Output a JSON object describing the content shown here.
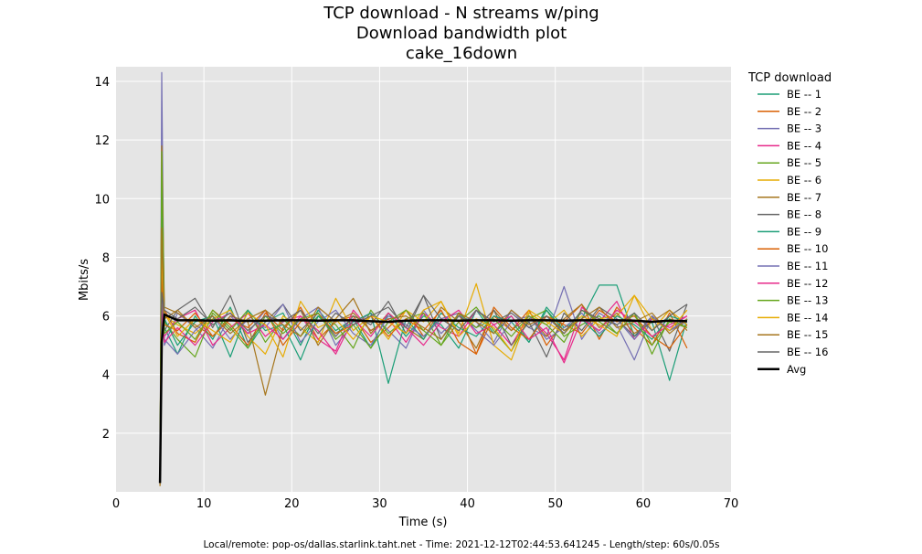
{
  "chart_data": {
    "type": "line",
    "title": [
      "TCP download - N streams w/ping",
      "Download bandwidth plot",
      "cake_16down"
    ],
    "xlabel": "Time (s)",
    "ylabel": "Mbits/s",
    "xlim": [
      0,
      70
    ],
    "ylim": [
      0,
      14.5
    ],
    "xticks": [
      0,
      10,
      20,
      30,
      40,
      50,
      60,
      70
    ],
    "yticks": [
      2,
      4,
      6,
      8,
      10,
      12,
      14
    ],
    "grid": true,
    "legend_title": "TCP download",
    "legend_placement": "outside-right",
    "background": "#e5e5e5",
    "x": [
      5.0,
      5.2,
      5.5,
      7,
      9,
      11,
      13,
      15,
      17,
      19,
      21,
      23,
      25,
      27,
      29,
      31,
      33,
      35,
      37,
      39,
      41,
      43,
      45,
      47,
      49,
      51,
      53,
      55,
      57,
      59,
      61,
      63,
      65
    ],
    "series": [
      {
        "name": "BE -- 1",
        "color": "#1b9e77",
        "values": [
          0.3,
          9.5,
          5.6,
          4.7,
          6.0,
          5.2,
          6.3,
          4.9,
          5.8,
          6.1,
          5.0,
          6.2,
          5.5,
          5.9,
          4.9,
          6.1,
          5.3,
          6.0,
          5.7,
          4.9,
          6.2,
          5.4,
          6.0,
          5.1,
          6.3,
          5.6,
          5.9,
          7.05,
          7.05,
          5.3,
          5.8,
          3.8,
          5.9
        ]
      },
      {
        "name": "BE -- 2",
        "color": "#d95f02",
        "values": [
          0.3,
          8.8,
          6.2,
          5.4,
          5.1,
          6.2,
          5.7,
          5.0,
          6.1,
          5.5,
          6.3,
          5.2,
          5.8,
          6.0,
          5.1,
          5.6,
          6.2,
          5.3,
          5.9,
          6.1,
          4.7,
          6.0,
          5.5,
          6.2,
          5.0,
          5.8,
          6.4,
          5.2,
          6.3,
          5.6,
          5.0,
          6.1,
          4.9
        ]
      },
      {
        "name": "BE -- 3",
        "color": "#7570b3",
        "values": [
          0.4,
          14.3,
          5.0,
          6.1,
          5.6,
          4.9,
          6.0,
          5.4,
          6.2,
          5.2,
          5.9,
          6.3,
          5.0,
          5.7,
          6.1,
          5.5,
          4.9,
          6.2,
          5.4,
          6.0,
          5.8,
          5.1,
          6.2,
          5.6,
          5.3,
          7.0,
          5.2,
          6.1,
          5.7,
          4.5,
          6.0,
          5.5,
          5.8
        ]
      },
      {
        "name": "BE -- 4",
        "color": "#e7298a",
        "values": [
          0.3,
          6.0,
          5.3,
          5.9,
          6.2,
          5.0,
          5.6,
          6.1,
          5.3,
          5.8,
          6.0,
          5.2,
          4.8,
          6.2,
          5.5,
          5.9,
          5.1,
          6.1,
          5.6,
          5.3,
          6.2,
          5.7,
          5.0,
          6.0,
          5.4,
          4.5,
          6.3,
          5.8,
          6.5,
          5.2,
          5.9,
          5.6,
          6.0
        ]
      },
      {
        "name": "BE -- 5",
        "color": "#66a61e",
        "values": [
          0.3,
          11.0,
          5.8,
          5.2,
          4.6,
          6.1,
          5.5,
          6.2,
          5.1,
          5.9,
          5.3,
          6.0,
          5.7,
          4.9,
          6.2,
          5.4,
          5.9,
          6.1,
          5.0,
          5.8,
          6.3,
          5.5,
          4.8,
          5.9,
          6.2,
          5.3,
          5.7,
          6.0,
          5.4,
          6.1,
          5.0,
          5.8,
          5.6
        ]
      },
      {
        "name": "BE -- 6",
        "color": "#e6ab02",
        "values": [
          0.6,
          11.7,
          6.0,
          5.7,
          5.4,
          5.9,
          6.2,
          5.3,
          4.7,
          6.0,
          5.6,
          5.1,
          6.6,
          5.5,
          6.0,
          5.2,
          6.2,
          5.8,
          6.5,
          5.4,
          7.1,
          5.0,
          4.5,
          6.1,
          5.7,
          6.2,
          5.3,
          5.9,
          6.0,
          6.7,
          5.5,
          6.2,
          5.7
        ]
      },
      {
        "name": "BE -- 7",
        "color": "#a6761d",
        "values": [
          0.2,
          11.8,
          6.3,
          6.1,
          5.7,
          5.3,
          6.0,
          5.8,
          3.3,
          5.6,
          6.2,
          5.0,
          5.9,
          6.6,
          5.4,
          6.1,
          5.6,
          5.2,
          6.3,
          5.8,
          4.9,
          6.2,
          5.5,
          6.0,
          5.3,
          5.9,
          6.4,
          5.6,
          6.1,
          5.4,
          5.8,
          6.2,
          5.5
        ]
      },
      {
        "name": "BE -- 8",
        "color": "#666666",
        "values": [
          0.3,
          7.0,
          5.5,
          6.2,
          6.6,
          5.6,
          6.7,
          5.1,
          5.8,
          6.4,
          5.5,
          6.1,
          5.3,
          6.0,
          5.7,
          6.5,
          5.4,
          6.7,
          5.2,
          6.0,
          5.6,
          6.2,
          5.0,
          5.8,
          4.6,
          6.1,
          5.5,
          6.3,
          5.9,
          5.3,
          6.0,
          4.8,
          6.4
        ]
      },
      {
        "name": "BE -- 9",
        "color": "#1b9e77",
        "values": [
          0.3,
          10.8,
          5.9,
          5.0,
          5.8,
          6.0,
          4.6,
          6.2,
          5.5,
          5.7,
          4.5,
          6.0,
          5.4,
          5.8,
          6.1,
          3.7,
          5.9,
          5.2,
          6.1,
          5.6,
          5.3,
          6.0,
          5.8,
          5.1,
          6.2,
          5.5,
          5.9,
          5.3,
          6.0,
          5.7,
          5.2,
          6.0,
          5.8
        ]
      },
      {
        "name": "BE -- 10",
        "color": "#d95f02",
        "values": [
          0.3,
          7.5,
          5.7,
          5.5,
          6.1,
          5.3,
          5.9,
          5.6,
          6.2,
          5.0,
          5.8,
          6.1,
          5.4,
          5.7,
          6.0,
          5.3,
          5.9,
          5.5,
          6.2,
          5.1,
          4.7,
          6.3,
          5.6,
          5.2,
          6.0,
          5.7,
          5.4,
          6.2,
          5.8,
          6.0,
          5.3,
          4.9,
          5.7
        ]
      },
      {
        "name": "BE -- 11",
        "color": "#7570b3",
        "values": [
          0.3,
          6.5,
          5.2,
          4.7,
          5.5,
          6.0,
          5.2,
          5.9,
          5.6,
          6.4,
          5.1,
          5.8,
          6.2,
          5.4,
          5.0,
          6.0,
          5.7,
          5.3,
          5.9,
          6.1,
          5.5,
          5.0,
          5.8,
          6.0,
          5.2,
          5.6,
          6.1,
          5.4,
          5.9,
          5.2,
          6.0,
          5.5,
          5.9
        ]
      },
      {
        "name": "BE -- 12",
        "color": "#e7298a",
        "values": [
          0.3,
          6.2,
          5.1,
          5.6,
          5.0,
          5.8,
          6.1,
          5.4,
          5.7,
          5.2,
          6.0,
          5.5,
          4.7,
          5.9,
          5.3,
          6.1,
          5.6,
          5.0,
          5.8,
          6.2,
          5.4,
          5.7,
          6.0,
          5.2,
          5.6,
          4.4,
          5.9,
          5.5,
          6.2,
          5.8,
          5.3,
          5.7,
          6.0
        ]
      },
      {
        "name": "BE -- 13",
        "color": "#66a61e",
        "values": [
          0.5,
          11.6,
          5.4,
          5.8,
          5.2,
          6.2,
          5.6,
          4.9,
          6.0,
          5.4,
          5.9,
          6.1,
          5.2,
          5.7,
          4.9,
          5.8,
          6.2,
          5.5,
          5.0,
          6.1,
          5.6,
          5.9,
          5.3,
          6.0,
          5.7,
          5.1,
          6.2,
          5.8,
          5.4,
          6.1,
          4.7,
          5.9,
          5.6
        ]
      },
      {
        "name": "BE -- 14",
        "color": "#e6ab02",
        "values": [
          0.7,
          8.0,
          6.1,
          5.3,
          5.9,
          5.5,
          5.1,
          6.1,
          5.7,
          4.6,
          6.5,
          5.6,
          5.9,
          5.2,
          6.0,
          5.8,
          5.4,
          6.2,
          6.5,
          5.3,
          5.9,
          5.6,
          4.8,
          6.2,
          5.8,
          5.4,
          6.0,
          5.7,
          5.3,
          6.7,
          5.9,
          5.5,
          6.2
        ]
      },
      {
        "name": "BE -- 15",
        "color": "#a6761d",
        "values": [
          0.2,
          9.0,
          5.9,
          6.2,
          5.6,
          6.0,
          5.4,
          5.9,
          6.2,
          5.7,
          5.3,
          6.3,
          5.8,
          6.1,
          5.5,
          5.9,
          6.0,
          5.6,
          5.2,
          6.1,
          5.8,
          5.4,
          6.2,
          5.7,
          6.0,
          5.5,
          5.9,
          6.3,
          5.6,
          5.8,
          6.1,
          5.4,
          5.9
        ]
      },
      {
        "name": "BE -- 16",
        "color": "#666666",
        "values": [
          0.3,
          6.8,
          6.2,
          5.9,
          6.3,
          5.7,
          6.1,
          5.5,
          6.0,
          5.8,
          6.2,
          5.4,
          6.1,
          5.7,
          6.0,
          6.3,
          5.6,
          6.7,
          5.9,
          5.5,
          6.2,
          5.8,
          6.1,
          5.6,
          6.0,
          5.4,
          6.2,
          5.9,
          5.7,
          6.1,
          5.5,
          6.0,
          6.4
        ]
      },
      {
        "name": "Avg",
        "color": "#000000",
        "values": [
          0.3,
          5.1,
          6.05,
          5.85,
          5.85,
          5.84,
          5.85,
          5.83,
          5.84,
          5.85,
          5.85,
          5.84,
          5.85,
          5.85,
          5.82,
          5.8,
          5.84,
          5.85,
          5.85,
          5.84,
          5.85,
          5.85,
          5.84,
          5.85,
          5.85,
          5.84,
          5.85,
          5.85,
          5.85,
          5.84,
          5.8,
          5.84,
          5.82
        ]
      }
    ],
    "footer": "Local/remote: pop-os/dallas.starlink.taht.net - Time: 2021-12-12T02:44:53.641245 - Length/step: 60s/0.05s"
  }
}
